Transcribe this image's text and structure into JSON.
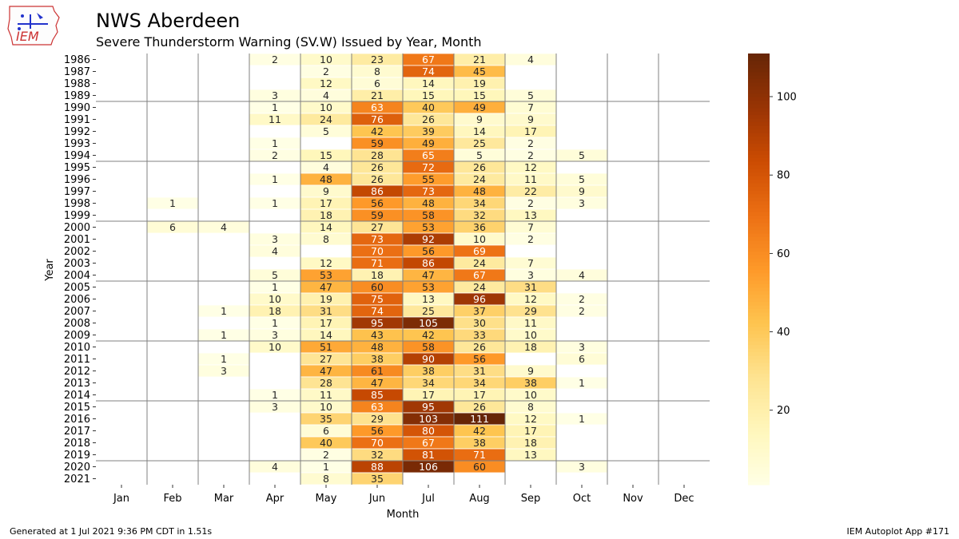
{
  "header": {
    "title": "NWS Aberdeen",
    "subtitle": "Severe Thunderstorm Warning (SV.W) Issued by Year, Month",
    "logo_text": "IEM"
  },
  "footer": {
    "generated": "Generated at 1 Jul 2021 9:36 PM CDT in 1.51s",
    "app": "IEM Autoplot App #171"
  },
  "chart_data": {
    "type": "heatmap",
    "title": "NWS Aberdeen",
    "subtitle": "Severe Thunderstorm Warning (SV.W) Issued by Year, Month",
    "xlabel": "Month",
    "ylabel": "Year",
    "months": [
      "Jan",
      "Feb",
      "Mar",
      "Apr",
      "May",
      "Jun",
      "Jul",
      "Aug",
      "Sep",
      "Oct",
      "Nov",
      "Dec"
    ],
    "years": [
      1986,
      1987,
      1988,
      1989,
      1990,
      1991,
      1992,
      1993,
      1994,
      1995,
      1996,
      1997,
      1998,
      1999,
      2000,
      2001,
      2002,
      2003,
      2004,
      2005,
      2006,
      2007,
      2008,
      2009,
      2010,
      2011,
      2012,
      2013,
      2014,
      2015,
      2016,
      2017,
      2018,
      2019,
      2020,
      2021
    ],
    "values": [
      [
        null,
        null,
        null,
        2,
        10,
        23,
        67,
        21,
        4,
        null,
        null,
        null
      ],
      [
        null,
        null,
        null,
        null,
        2,
        8,
        74,
        45,
        null,
        null,
        null,
        null
      ],
      [
        null,
        null,
        null,
        null,
        12,
        6,
        14,
        19,
        null,
        null,
        null,
        null
      ],
      [
        null,
        null,
        null,
        3,
        4,
        21,
        15,
        15,
        5,
        null,
        null,
        null
      ],
      [
        null,
        null,
        null,
        1,
        10,
        63,
        40,
        49,
        7,
        null,
        null,
        null
      ],
      [
        null,
        null,
        null,
        11,
        24,
        76,
        26,
        9,
        9,
        null,
        null,
        null
      ],
      [
        null,
        null,
        null,
        null,
        5,
        42,
        39,
        14,
        17,
        null,
        null,
        null
      ],
      [
        null,
        null,
        null,
        1,
        null,
        59,
        49,
        25,
        2,
        null,
        null,
        null
      ],
      [
        null,
        null,
        null,
        2,
        15,
        28,
        65,
        5,
        2,
        5,
        null,
        null
      ],
      [
        null,
        null,
        null,
        null,
        4,
        26,
        72,
        26,
        12,
        null,
        null,
        null
      ],
      [
        null,
        null,
        null,
        1,
        48,
        26,
        55,
        24,
        11,
        5,
        null,
        null
      ],
      [
        null,
        null,
        null,
        null,
        9,
        86,
        73,
        48,
        22,
        9,
        null,
        null
      ],
      [
        null,
        1,
        null,
        1,
        17,
        56,
        48,
        34,
        2,
        3,
        null,
        null
      ],
      [
        null,
        null,
        null,
        null,
        18,
        59,
        58,
        32,
        13,
        null,
        null,
        null
      ],
      [
        null,
        6,
        4,
        null,
        14,
        27,
        53,
        36,
        7,
        null,
        null,
        null
      ],
      [
        null,
        null,
        null,
        3,
        8,
        73,
        92,
        10,
        2,
        null,
        null,
        null
      ],
      [
        null,
        null,
        null,
        4,
        null,
        70,
        56,
        69,
        null,
        null,
        null,
        null
      ],
      [
        null,
        null,
        null,
        null,
        12,
        71,
        86,
        24,
        7,
        null,
        null,
        null
      ],
      [
        null,
        null,
        null,
        5,
        53,
        18,
        47,
        67,
        3,
        4,
        null,
        null
      ],
      [
        null,
        null,
        null,
        1,
        47,
        60,
        53,
        24,
        31,
        null,
        null,
        null
      ],
      [
        null,
        null,
        null,
        10,
        19,
        75,
        13,
        96,
        12,
        2,
        null,
        null
      ],
      [
        null,
        null,
        1,
        18,
        31,
        74,
        25,
        37,
        29,
        2,
        null,
        null
      ],
      [
        null,
        null,
        null,
        1,
        17,
        95,
        105,
        30,
        11,
        null,
        null,
        null
      ],
      [
        null,
        null,
        1,
        3,
        14,
        43,
        42,
        33,
        10,
        null,
        null,
        null
      ],
      [
        null,
        null,
        null,
        10,
        51,
        48,
        58,
        26,
        18,
        3,
        null,
        null
      ],
      [
        null,
        null,
        1,
        null,
        27,
        38,
        90,
        56,
        null,
        6,
        null,
        null
      ],
      [
        null,
        null,
        3,
        null,
        47,
        61,
        38,
        31,
        9,
        null,
        null,
        null
      ],
      [
        null,
        null,
        null,
        null,
        28,
        47,
        34,
        34,
        38,
        1,
        null,
        null
      ],
      [
        null,
        null,
        null,
        1,
        11,
        85,
        17,
        17,
        10,
        null,
        null,
        null
      ],
      [
        null,
        null,
        null,
        3,
        10,
        63,
        95,
        26,
        8,
        null,
        null,
        null
      ],
      [
        null,
        null,
        null,
        null,
        35,
        29,
        103,
        111,
        12,
        1,
        null,
        null
      ],
      [
        null,
        null,
        null,
        null,
        6,
        56,
        80,
        42,
        17,
        null,
        null,
        null
      ],
      [
        null,
        null,
        null,
        null,
        40,
        70,
        67,
        38,
        18,
        null,
        null,
        null
      ],
      [
        null,
        null,
        null,
        null,
        2,
        32,
        81,
        71,
        13,
        null,
        null,
        null
      ],
      [
        null,
        null,
        null,
        4,
        1,
        88,
        106,
        60,
        null,
        3,
        null,
        null
      ],
      [
        null,
        null,
        null,
        null,
        8,
        35,
        null,
        null,
        null,
        null,
        null,
        null
      ]
    ],
    "colorbar": {
      "min": 1,
      "max": 111,
      "ticks": [
        20,
        40,
        60,
        80,
        100
      ],
      "colormap": "YlOrBr"
    },
    "grid": true
  }
}
